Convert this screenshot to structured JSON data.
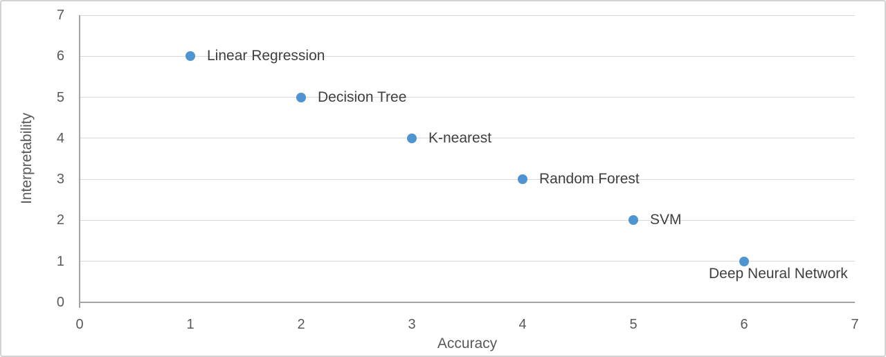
{
  "chart_data": {
    "type": "scatter",
    "title": "",
    "xlabel": "Accuracy",
    "ylabel": "Interpretability",
    "xlim": [
      0,
      7
    ],
    "ylim": [
      0,
      7
    ],
    "x_ticks": [
      0,
      1,
      2,
      3,
      4,
      5,
      6,
      7
    ],
    "y_ticks": [
      0,
      1,
      2,
      3,
      4,
      5,
      6,
      7
    ],
    "grid": "horizontal",
    "legend": "none",
    "points": [
      {
        "label": "Linear Regression",
        "x": 1,
        "y": 6,
        "label_pos": "right"
      },
      {
        "label": "Decision Tree",
        "x": 2,
        "y": 5,
        "label_pos": "right"
      },
      {
        "label": "K-nearest",
        "x": 3,
        "y": 4,
        "label_pos": "right"
      },
      {
        "label": "Random Forest",
        "x": 4,
        "y": 3,
        "label_pos": "right"
      },
      {
        "label": "SVM",
        "x": 5,
        "y": 2,
        "label_pos": "right"
      },
      {
        "label": "Deep Neural Network",
        "x": 6,
        "y": 1,
        "label_pos": "below"
      }
    ],
    "colors": {
      "marker": "#4d94d1",
      "gridline": "#d9d9d9",
      "axis_line": "#a3a3a3",
      "tick_text": "#595959",
      "label_text": "#3f3f3f",
      "frame_border": "#d2d2d2"
    }
  }
}
